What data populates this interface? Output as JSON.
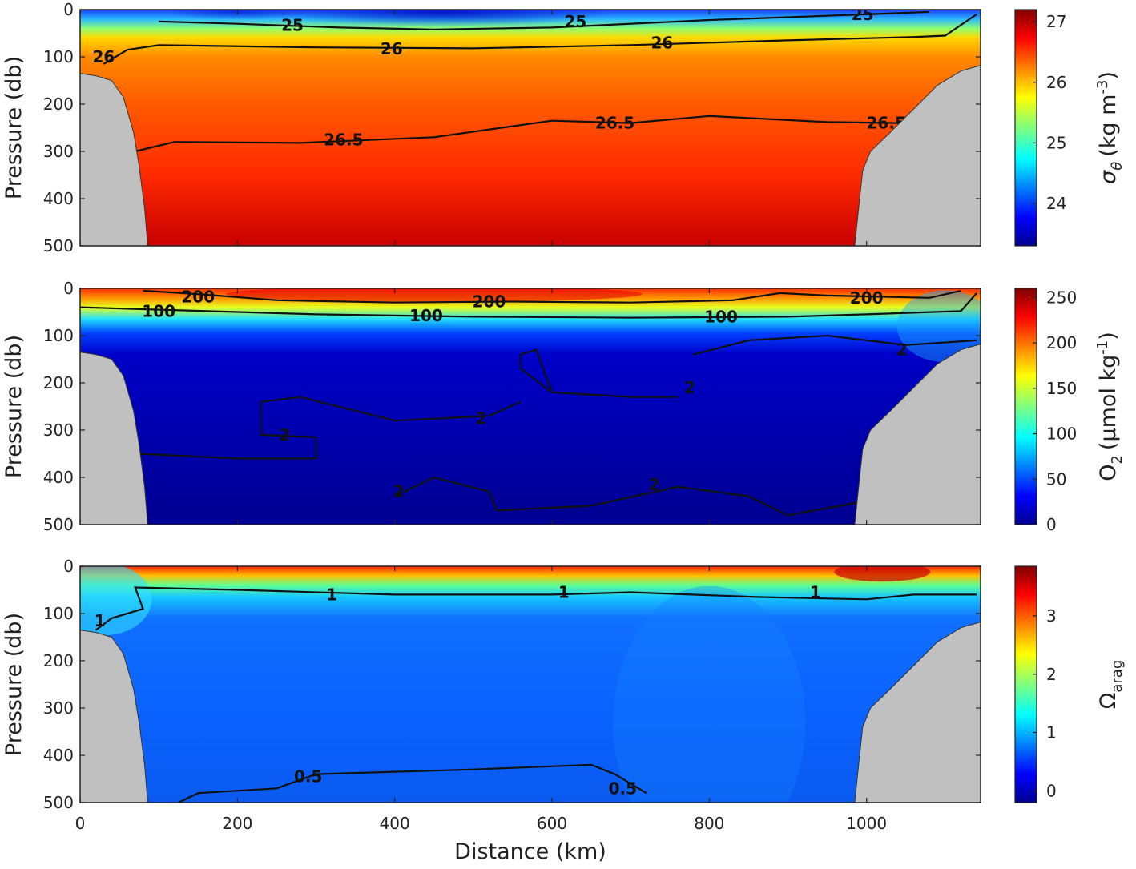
{
  "chart_data": [
    {
      "type": "heatmap",
      "ylabel": "Pressure (db)",
      "xlim": [
        0,
        1145
      ],
      "ylim": [
        0,
        500
      ],
      "yticks": [
        "0",
        "100",
        "200",
        "300",
        "400",
        "500"
      ],
      "colorbar": {
        "label_symbol": "σ",
        "label_sub": "θ",
        "label_units": "(kg m",
        "label_exp": "-3",
        "label_close": ")",
        "range": [
          23.3,
          27.2
        ],
        "ticks": [
          "24",
          "25",
          "26",
          "27"
        ],
        "tick_values": [
          24,
          25,
          26,
          27
        ]
      },
      "contours": [
        {
          "level": "25",
          "points": [
            [
              100,
              25
            ],
            [
              200,
              30
            ],
            [
              330,
              38
            ],
            [
              450,
              42
            ],
            [
              600,
              38
            ],
            [
              800,
              22
            ],
            [
              1000,
              10
            ],
            [
              1080,
              5
            ]
          ],
          "labels": [
            [
              270,
              33
            ],
            [
              630,
              25
            ],
            [
              995,
              10
            ]
          ]
        },
        {
          "level": "26",
          "points": [
            [
              30,
              115
            ],
            [
              60,
              85
            ],
            [
              100,
              75
            ],
            [
              300,
              80
            ],
            [
              500,
              82
            ],
            [
              700,
              75
            ],
            [
              900,
              65
            ],
            [
              1060,
              58
            ],
            [
              1100,
              55
            ],
            [
              1140,
              10
            ]
          ],
          "labels": [
            [
              30,
              100
            ],
            [
              396,
              83
            ],
            [
              740,
              70
            ]
          ]
        },
        {
          "level": "26.5",
          "points": [
            [
              70,
              300
            ],
            [
              120,
              280
            ],
            [
              280,
              282
            ],
            [
              450,
              270
            ],
            [
              600,
              235
            ],
            [
              700,
              240
            ],
            [
              800,
              225
            ],
            [
              950,
              238
            ],
            [
              1040,
              240
            ],
            [
              1100,
              230
            ]
          ],
          "labels": [
            [
              335,
              275
            ],
            [
              680,
              240
            ],
            [
              1025,
              240
            ]
          ]
        }
      ]
    },
    {
      "type": "heatmap",
      "ylabel": "Pressure (db)",
      "xlim": [
        0,
        1145
      ],
      "ylim": [
        0,
        500
      ],
      "yticks": [
        "0",
        "100",
        "200",
        "300",
        "400",
        "500"
      ],
      "colorbar": {
        "label_symbol": "O",
        "label_sub": "2",
        "label_units": "(μmol kg",
        "label_exp": "-1",
        "label_close": ")",
        "range": [
          0,
          260
        ],
        "ticks": [
          "0",
          "50",
          "100",
          "150",
          "200",
          "250"
        ],
        "tick_values": [
          0,
          50,
          100,
          150,
          200,
          250
        ]
      },
      "contours": [
        {
          "level": "200",
          "points": [
            [
              80,
              5
            ],
            [
              150,
              12
            ],
            [
              250,
              25
            ],
            [
              400,
              30
            ],
            [
              550,
              28
            ],
            [
              700,
              30
            ],
            [
              830,
              25
            ],
            [
              890,
              10
            ],
            [
              950,
              15
            ],
            [
              1080,
              20
            ],
            [
              1120,
              5
            ]
          ],
          "labels": [
            [
              150,
              18
            ],
            [
              520,
              28
            ],
            [
              1000,
              20
            ]
          ]
        },
        {
          "level": "100",
          "points": [
            [
              0,
              40
            ],
            [
              100,
              45
            ],
            [
              300,
              55
            ],
            [
              500,
              60
            ],
            [
              700,
              62
            ],
            [
              900,
              60
            ],
            [
              1000,
              55
            ],
            [
              1120,
              48
            ],
            [
              1140,
              10
            ]
          ],
          "labels": [
            [
              100,
              48
            ],
            [
              440,
              58
            ],
            [
              815,
              60
            ]
          ]
        },
        {
          "level": "2",
          "points": [
            [
              780,
              140
            ],
            [
              850,
              110
            ],
            [
              950,
              100
            ],
            [
              1050,
              120
            ],
            [
              1140,
              110
            ]
          ],
          "labels": [
            [
              1045,
              130
            ]
          ]
        },
        {
          "level": "2",
          "points": [
            [
              760,
              230
            ],
            [
              700,
              230
            ],
            [
              600,
              220
            ],
            [
              560,
              170
            ],
            [
              560,
              140
            ],
            [
              580,
              130
            ],
            [
              600,
              220
            ]
          ],
          "labels": [
            [
              775,
              210
            ]
          ]
        },
        {
          "level": "2",
          "points": [
            [
              560,
              240
            ],
            [
              520,
              270
            ],
            [
              400,
              280
            ],
            [
              280,
              230
            ],
            [
              230,
              240
            ],
            [
              230,
              310
            ],
            [
              300,
              315
            ],
            [
              300,
              360
            ],
            [
              200,
              360
            ],
            [
              75,
              350
            ]
          ],
          "labels": [
            [
              510,
              275
            ],
            [
              260,
              310
            ]
          ]
        },
        {
          "level": "2",
          "points": [
            [
              400,
              440
            ],
            [
              450,
              400
            ],
            [
              520,
              430
            ],
            [
              530,
              470
            ],
            [
              650,
              460
            ],
            [
              760,
              420
            ],
            [
              850,
              440
            ],
            [
              900,
              480
            ],
            [
              1000,
              450
            ]
          ],
          "labels": [
            [
              405,
              430
            ],
            [
              730,
              415
            ]
          ]
        }
      ]
    },
    {
      "type": "heatmap",
      "ylabel": "Pressure (db)",
      "xlabel": "Distance (km)",
      "xlim": [
        0,
        1145
      ],
      "ylim": [
        0,
        500
      ],
      "yticks": [
        "0",
        "100",
        "200",
        "300",
        "400",
        "500"
      ],
      "xticks": [
        "0",
        "200",
        "400",
        "600",
        "800",
        "1000"
      ],
      "xtick_values": [
        0,
        200,
        400,
        600,
        800,
        1000
      ],
      "colorbar": {
        "label_symbol": "Ω",
        "label_sub": "arag",
        "label_units": "",
        "label_exp": "",
        "label_close": "",
        "range": [
          -0.2,
          3.85
        ],
        "ticks": [
          "0",
          "1",
          "2",
          "3"
        ],
        "tick_values": [
          0,
          1,
          2,
          3
        ]
      },
      "contours": [
        {
          "level": "1",
          "points": [
            [
              20,
              135
            ],
            [
              40,
              110
            ],
            [
              80,
              90
            ],
            [
              70,
              45
            ],
            [
              200,
              50
            ],
            [
              400,
              60
            ],
            [
              600,
              60
            ],
            [
              700,
              55
            ],
            [
              860,
              65
            ],
            [
              1000,
              70
            ],
            [
              1060,
              60
            ],
            [
              1140,
              60
            ]
          ],
          "labels": [
            [
              25,
              115
            ],
            [
              320,
              60
            ],
            [
              615,
              55
            ],
            [
              935,
              55
            ]
          ]
        },
        {
          "level": "0.5",
          "points": [
            [
              125,
              500
            ],
            [
              150,
              480
            ],
            [
              250,
              470
            ],
            [
              300,
              440
            ],
            [
              500,
              430
            ],
            [
              650,
              420
            ],
            [
              680,
              440
            ],
            [
              720,
              480
            ]
          ],
          "labels": [
            [
              290,
              445
            ],
            [
              690,
              470
            ]
          ]
        }
      ]
    }
  ]
}
